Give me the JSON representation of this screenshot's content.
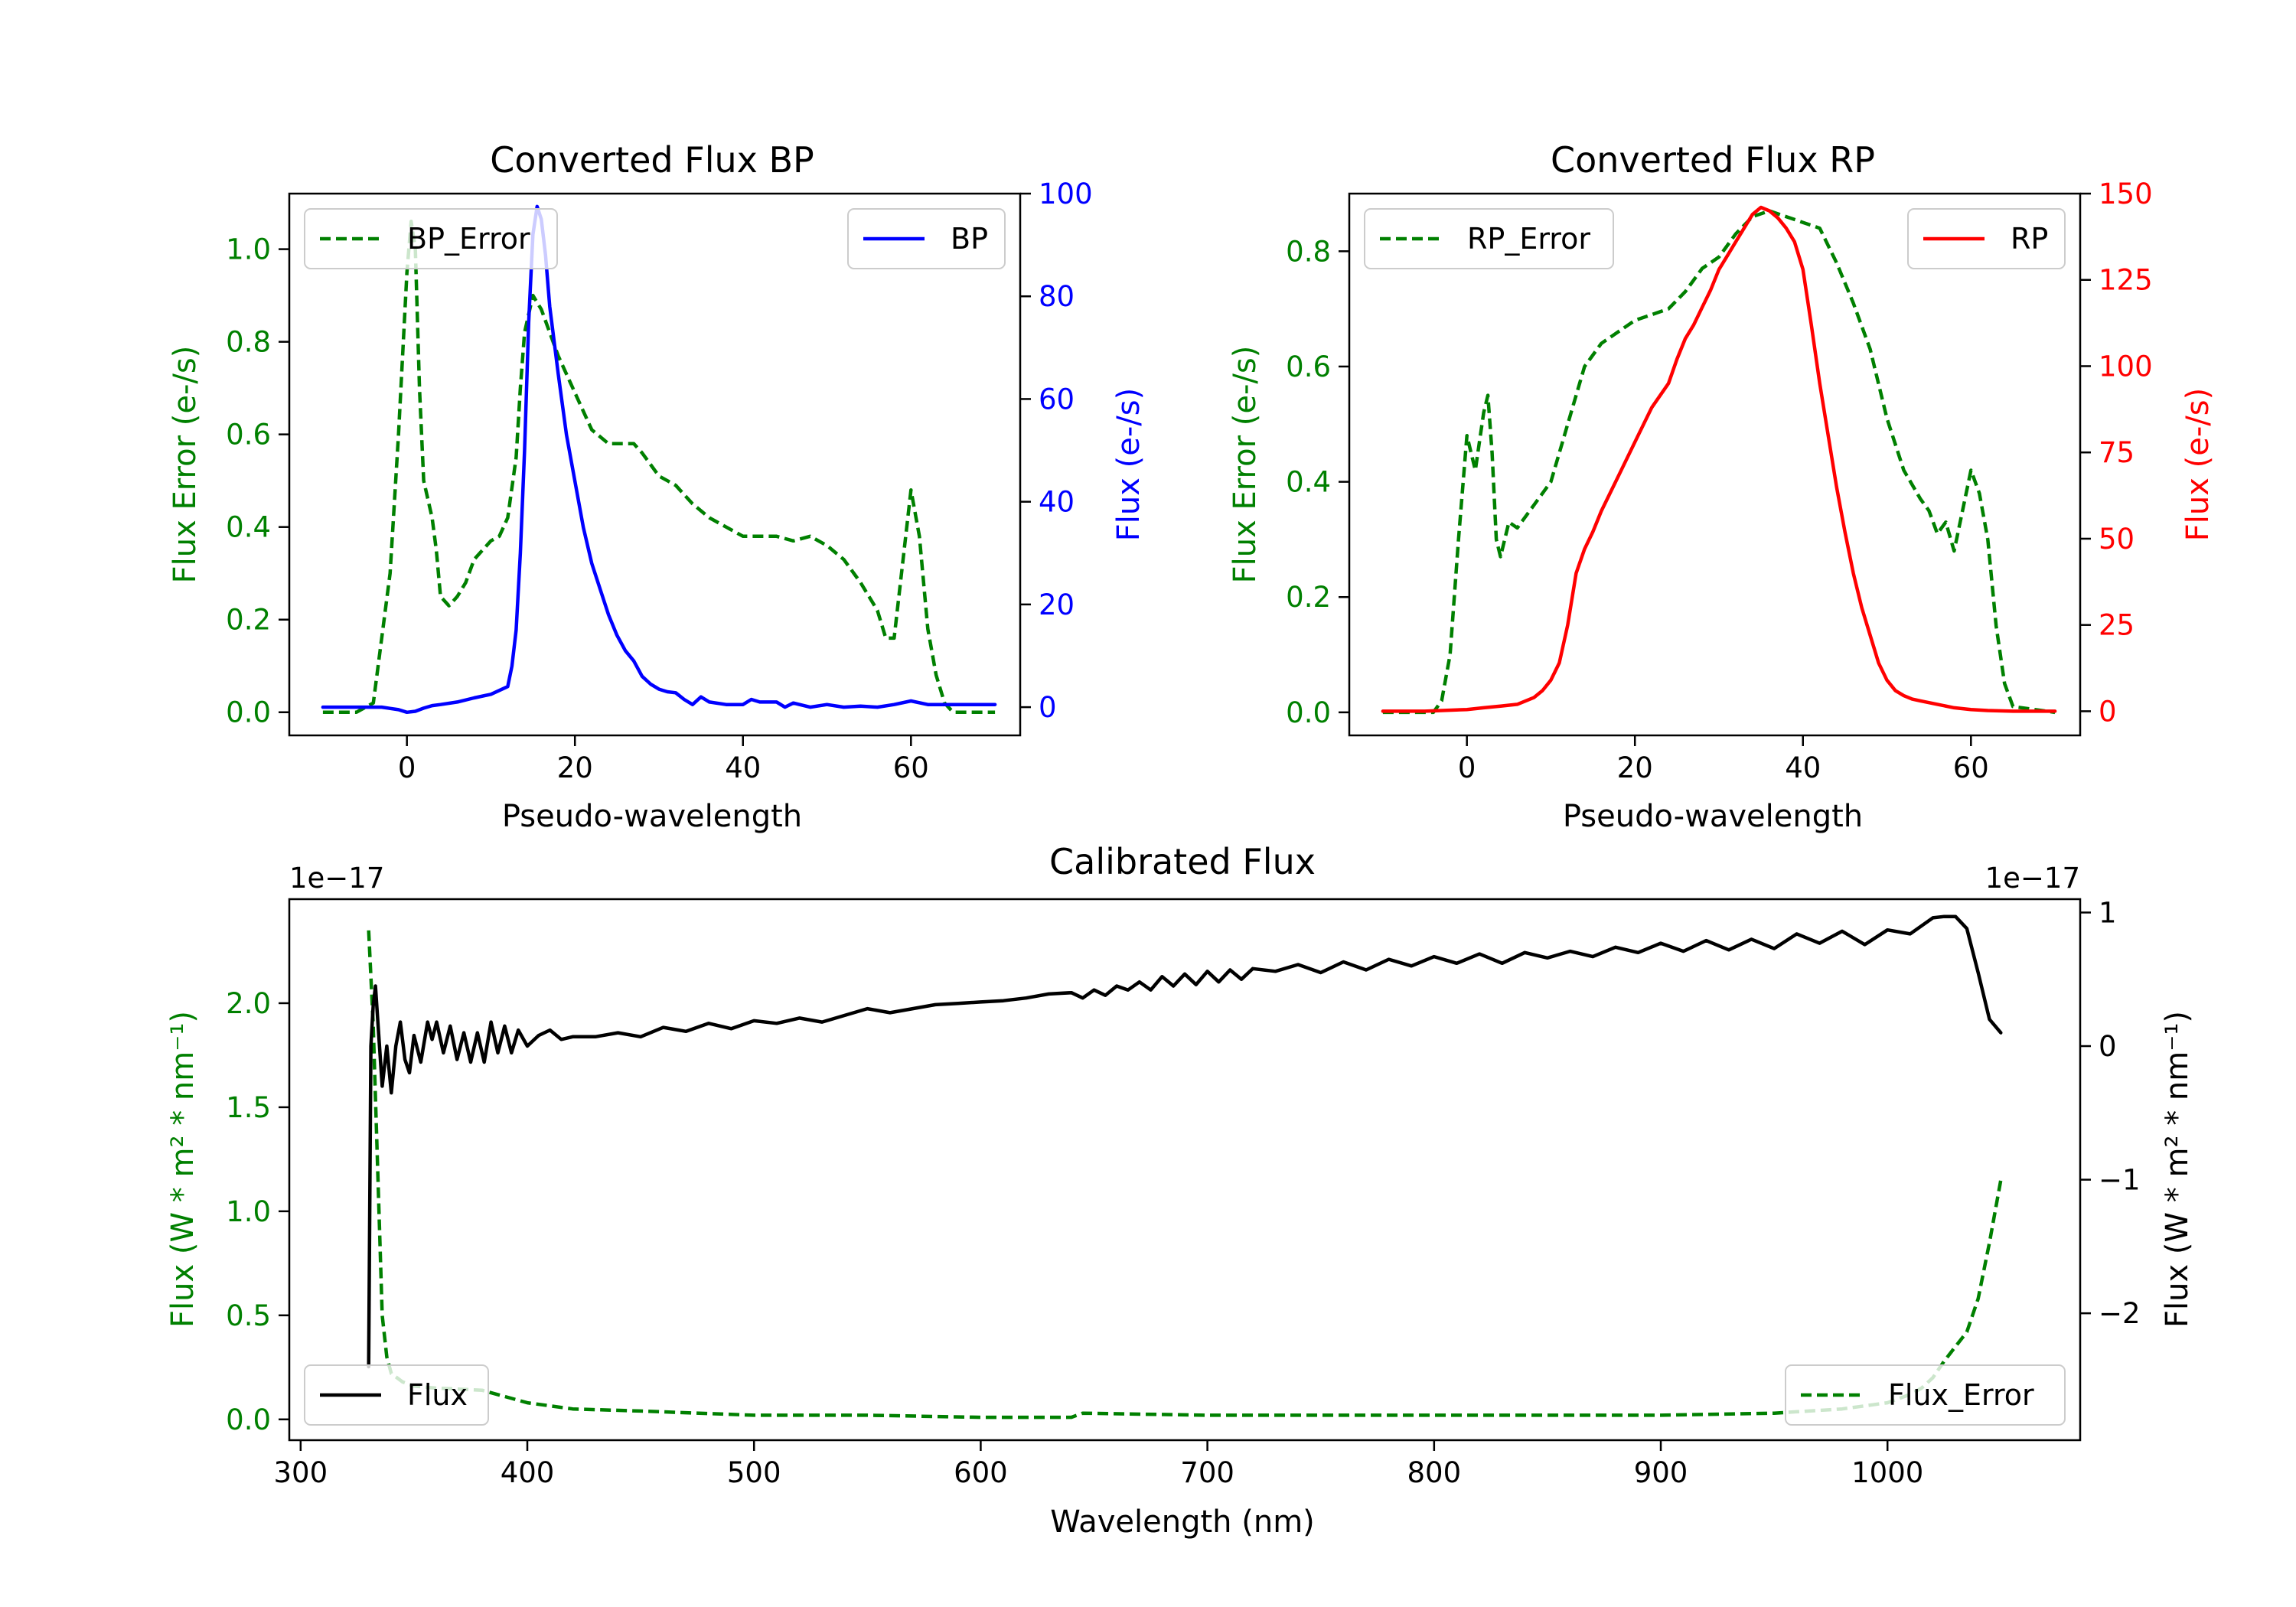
{
  "chart_data": [
    {
      "type": "line",
      "title": "Converted Flux BP",
      "xlabel": "Pseudo-wavelength",
      "ylabel_left": "Flux Error (e-/s)",
      "ylabel_right": "Flux (e-/s)",
      "xlim": [
        -14,
        73
      ],
      "ylim_left": [
        -0.05,
        1.12
      ],
      "ylim_right": [
        -5.5,
        100
      ],
      "xticks": [
        0,
        20,
        40,
        60
      ],
      "yticks_left": [
        0.0,
        0.2,
        0.4,
        0.6,
        0.8,
        1.0
      ],
      "yticks_right": [
        0,
        20,
        40,
        60,
        80,
        100
      ],
      "series": [
        {
          "name": "BP_Error",
          "axis": "left",
          "color": "#008000",
          "dash": true,
          "x": [
            -10,
            -6,
            -4,
            -2,
            -1,
            0,
            0.5,
            1,
            1.5,
            2,
            3,
            3.5,
            4,
            5,
            6,
            7,
            8,
            9,
            10,
            11,
            12,
            13,
            13.5,
            14,
            15,
            16,
            17,
            18,
            20,
            22,
            24,
            26,
            27,
            28,
            30,
            32,
            34,
            36,
            38,
            40,
            44,
            46,
            48,
            50,
            52,
            54,
            56,
            57,
            58,
            59,
            60,
            61,
            62,
            63,
            64,
            65,
            66,
            70
          ],
          "y": [
            0.0,
            0.0,
            0.02,
            0.3,
            0.6,
            0.95,
            1.06,
            1.0,
            0.7,
            0.5,
            0.42,
            0.35,
            0.25,
            0.23,
            0.25,
            0.28,
            0.33,
            0.35,
            0.37,
            0.38,
            0.42,
            0.55,
            0.7,
            0.82,
            0.9,
            0.87,
            0.82,
            0.77,
            0.69,
            0.61,
            0.58,
            0.58,
            0.58,
            0.56,
            0.51,
            0.49,
            0.45,
            0.42,
            0.4,
            0.38,
            0.38,
            0.37,
            0.38,
            0.36,
            0.33,
            0.28,
            0.22,
            0.16,
            0.16,
            0.32,
            0.48,
            0.38,
            0.18,
            0.08,
            0.02,
            0.0,
            0.0,
            0.0
          ]
        },
        {
          "name": "BP",
          "axis": "right",
          "color": "#0000ff",
          "dash": false,
          "x": [
            -10,
            -6,
            -3,
            -1,
            0,
            1,
            2,
            3,
            4,
            6,
            8,
            10,
            12,
            12.5,
            13,
            13.5,
            14,
            14.5,
            15,
            15.5,
            16,
            16.5,
            17,
            18,
            19,
            20,
            21,
            22,
            23,
            24,
            25,
            26,
            27,
            28,
            29,
            30,
            31,
            32,
            33,
            34,
            35,
            36,
            38,
            40,
            41,
            42,
            44,
            45,
            46,
            48,
            50,
            52,
            54,
            56,
            58,
            60,
            62,
            64,
            66,
            68,
            70
          ],
          "y": [
            0.0,
            0.0,
            0.0,
            -0.5,
            -1.0,
            -0.8,
            -0.2,
            0.3,
            0.5,
            1.0,
            1.8,
            2.5,
            4.0,
            8.0,
            15.0,
            30.0,
            50.0,
            75.0,
            92.0,
            97.5,
            95.0,
            88.0,
            78.0,
            65.0,
            53.0,
            44.0,
            35.0,
            28.0,
            23.0,
            18.0,
            14.0,
            11.0,
            9.0,
            6.0,
            4.5,
            3.5,
            3.0,
            2.8,
            1.5,
            0.5,
            2.0,
            1.0,
            0.5,
            0.5,
            1.5,
            1.0,
            1.0,
            0.0,
            0.8,
            0.0,
            0.5,
            0.0,
            0.2,
            0.0,
            0.5,
            1.2,
            0.5,
            0.5,
            0.5,
            0.5,
            0.5
          ]
        }
      ],
      "legend": [
        {
          "label": "BP_Error",
          "position": "upper-left"
        },
        {
          "label": "BP",
          "position": "upper-right"
        }
      ]
    },
    {
      "type": "line",
      "title": "Converted Flux RP",
      "xlabel": "Pseudo-wavelength",
      "ylabel_left": "Flux Error (e-/s)",
      "ylabel_right": "Flux (e-/s)",
      "xlim": [
        -14,
        73
      ],
      "ylim_left": [
        -0.04,
        0.9
      ],
      "ylim_right": [
        -7,
        150
      ],
      "xticks": [
        0,
        20,
        40,
        60
      ],
      "yticks_left": [
        0.0,
        0.2,
        0.4,
        0.6,
        0.8
      ],
      "yticks_right": [
        0,
        25,
        50,
        75,
        100,
        125,
        150
      ],
      "series": [
        {
          "name": "RP_Error",
          "axis": "left",
          "color": "#008000",
          "dash": true,
          "x": [
            -10,
            -5,
            -4,
            -3,
            -2,
            -1,
            0,
            1,
            2,
            2.5,
            3,
            3.5,
            4,
            5,
            6,
            8,
            10,
            12,
            14,
            16,
            20,
            24,
            26,
            28,
            30,
            32,
            34,
            36,
            38,
            40,
            42,
            44,
            46,
            48,
            50,
            52,
            54,
            55,
            56,
            57,
            58,
            59,
            60,
            61,
            62,
            63,
            64,
            65,
            70
          ],
          "y": [
            0.0,
            0.0,
            0.0,
            0.02,
            0.1,
            0.3,
            0.48,
            0.42,
            0.52,
            0.55,
            0.45,
            0.3,
            0.27,
            0.33,
            0.32,
            0.36,
            0.4,
            0.5,
            0.6,
            0.64,
            0.68,
            0.7,
            0.73,
            0.77,
            0.79,
            0.83,
            0.86,
            0.87,
            0.86,
            0.85,
            0.84,
            0.78,
            0.71,
            0.63,
            0.51,
            0.42,
            0.37,
            0.35,
            0.31,
            0.33,
            0.28,
            0.35,
            0.42,
            0.38,
            0.3,
            0.15,
            0.05,
            0.01,
            0.0
          ]
        },
        {
          "name": "RP",
          "axis": "right",
          "color": "#ff0000",
          "dash": false,
          "x": [
            -10,
            -5,
            0,
            2,
            4,
            6,
            7,
            8,
            9,
            10,
            11,
            12,
            13,
            14,
            15,
            16,
            18,
            20,
            22,
            24,
            25,
            26,
            27,
            28,
            29,
            30,
            31,
            32,
            33,
            34,
            35,
            36,
            37,
            38,
            39,
            40,
            41,
            42,
            43,
            44,
            45,
            46,
            47,
            48,
            49,
            50,
            51,
            52,
            53,
            54,
            56,
            58,
            60,
            62,
            65,
            70
          ],
          "y": [
            0.0,
            0.0,
            0.5,
            1.0,
            1.5,
            2.0,
            3.0,
            4.0,
            6.0,
            9.0,
            14.0,
            25.0,
            40.0,
            47.0,
            52.0,
            58.0,
            68.0,
            78.0,
            88.0,
            95.0,
            102.0,
            108.0,
            112.0,
            117.0,
            122.0,
            128.0,
            132.0,
            136.0,
            140.0,
            144.0,
            146.0,
            145.0,
            143.0,
            140.0,
            136.0,
            128.0,
            112.0,
            95.0,
            80.0,
            65.0,
            52.0,
            40.0,
            30.0,
            22.0,
            14.0,
            9.0,
            6.0,
            4.5,
            3.5,
            3.0,
            2.0,
            1.0,
            0.5,
            0.2,
            0.0,
            0.0
          ]
        }
      ],
      "legend": [
        {
          "label": "RP_Error",
          "position": "upper-left"
        },
        {
          "label": "RP",
          "position": "upper-right"
        }
      ]
    },
    {
      "type": "line",
      "title": "Calibrated Flux",
      "xlabel": "Wavelength (nm)",
      "ylabel_left": "Flux (W * m² * nm⁻¹)",
      "ylabel_right": "Flux (W * m² * nm⁻¹)",
      "offset_left": "1e−17",
      "offset_right": "1e−17",
      "xlim": [
        295,
        1085
      ],
      "ylim_left": [
        -0.1,
        2.5
      ],
      "ylim_right": [
        -2.95,
        1.1
      ],
      "xticks": [
        300,
        400,
        500,
        600,
        700,
        800,
        900,
        1000
      ],
      "yticks_left": [
        0.0,
        0.5,
        1.0,
        1.5,
        2.0
      ],
      "ytick_labels_left": [
        "0.0",
        "0.5",
        "1.0",
        "1.5",
        "2.0"
      ],
      "yticks_right": [
        1,
        0,
        -1,
        -2
      ],
      "ytick_labels_right": [
        "1",
        "0",
        "−1",
        "−2"
      ],
      "series": [
        {
          "name": "Flux",
          "axis": "right",
          "color": "#000000",
          "dash": false,
          "x": [
            330,
            331,
            332,
            333,
            334,
            336,
            338,
            340,
            342,
            344,
            346,
            348,
            350,
            353,
            356,
            358,
            360,
            363,
            366,
            369,
            372,
            375,
            378,
            381,
            384,
            387,
            390,
            393,
            396,
            400,
            405,
            410,
            415,
            420,
            430,
            440,
            450,
            460,
            470,
            480,
            490,
            500,
            510,
            520,
            530,
            540,
            550,
            560,
            570,
            580,
            590,
            600,
            610,
            620,
            630,
            640,
            645,
            650,
            655,
            660,
            665,
            670,
            675,
            680,
            685,
            690,
            695,
            700,
            705,
            710,
            715,
            720,
            730,
            740,
            750,
            760,
            770,
            780,
            790,
            800,
            810,
            820,
            830,
            840,
            850,
            860,
            870,
            880,
            890,
            900,
            910,
            920,
            930,
            940,
            950,
            960,
            970,
            980,
            990,
            1000,
            1010,
            1020,
            1025,
            1030,
            1035,
            1040,
            1045,
            1050
          ],
          "y": [
            -2.4,
            0.0,
            0.3,
            0.45,
            0.2,
            -0.3,
            0.0,
            -0.35,
            0.0,
            0.18,
            -0.1,
            -0.2,
            0.08,
            -0.12,
            0.18,
            0.05,
            0.18,
            -0.05,
            0.15,
            -0.1,
            0.1,
            -0.12,
            0.1,
            -0.12,
            0.18,
            -0.05,
            0.15,
            -0.05,
            0.12,
            0.0,
            0.08,
            0.12,
            0.05,
            0.07,
            0.07,
            0.1,
            0.07,
            0.14,
            0.11,
            0.17,
            0.13,
            0.19,
            0.17,
            0.21,
            0.18,
            0.23,
            0.28,
            0.25,
            0.28,
            0.31,
            0.32,
            0.33,
            0.34,
            0.36,
            0.39,
            0.4,
            0.36,
            0.42,
            0.38,
            0.45,
            0.42,
            0.48,
            0.42,
            0.52,
            0.45,
            0.54,
            0.46,
            0.56,
            0.48,
            0.57,
            0.5,
            0.58,
            0.56,
            0.61,
            0.55,
            0.63,
            0.57,
            0.65,
            0.6,
            0.67,
            0.62,
            0.69,
            0.62,
            0.7,
            0.66,
            0.71,
            0.67,
            0.74,
            0.7,
            0.77,
            0.71,
            0.79,
            0.72,
            0.8,
            0.73,
            0.84,
            0.77,
            0.86,
            0.76,
            0.87,
            0.84,
            0.96,
            0.97,
            0.97,
            0.88,
            0.55,
            0.2,
            0.1
          ]
        },
        {
          "name": "Flux_Error",
          "axis": "left",
          "color": "#008000",
          "dash": true,
          "x": [
            330,
            332,
            334,
            336,
            338,
            340,
            345,
            350,
            360,
            380,
            400,
            420,
            450,
            500,
            550,
            600,
            640,
            645,
            700,
            800,
            900,
            950,
            980,
            1000,
            1010,
            1015,
            1020,
            1025,
            1030,
            1035,
            1040,
            1045,
            1050
          ],
          "y": [
            2.35,
            1.9,
            1.2,
            0.5,
            0.3,
            0.22,
            0.18,
            0.16,
            0.15,
            0.14,
            0.08,
            0.05,
            0.04,
            0.02,
            0.02,
            0.01,
            0.01,
            0.03,
            0.02,
            0.02,
            0.02,
            0.03,
            0.05,
            0.08,
            0.12,
            0.15,
            0.2,
            0.28,
            0.35,
            0.42,
            0.58,
            0.85,
            1.15
          ]
        }
      ],
      "legend": [
        {
          "label": "Flux",
          "position": "lower-left"
        },
        {
          "label": "Flux_Error",
          "position": "lower-right"
        }
      ]
    }
  ]
}
